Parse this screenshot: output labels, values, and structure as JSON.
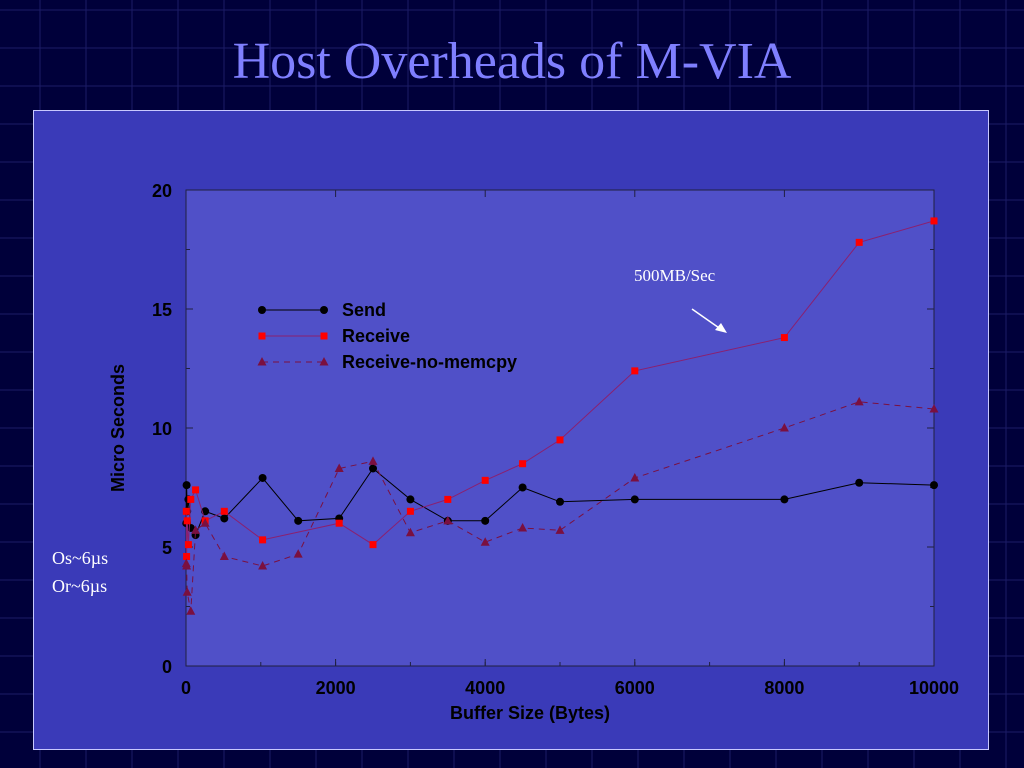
{
  "slide": {
    "title": "Host Overheads of M-VIA",
    "annotation": "500MB/Sec",
    "notes": [
      "Os~6µs",
      "Or~6µs"
    ]
  },
  "colors": {
    "background": "#00003a",
    "panel": "#3a3ab8",
    "title": "#7f7fff",
    "send": "#000000",
    "receive": "#ff0000",
    "receive_line": "#8a2070",
    "receive_no_memcpy": "#7a1040"
  },
  "chart_data": {
    "type": "line",
    "title": "",
    "xlabel": "Buffer Size (Bytes)",
    "ylabel": "Micro Seconds",
    "xlim": [
      0,
      10000
    ],
    "ylim": [
      0,
      20
    ],
    "xticks": [
      0,
      2000,
      4000,
      6000,
      8000,
      10000
    ],
    "yticks": [
      0,
      5,
      10,
      15,
      20
    ],
    "grid": false,
    "legend_position": "upper-left",
    "series": [
      {
        "name": "Send",
        "marker": "circle",
        "line": "solid",
        "points": [
          [
            4,
            6.0
          ],
          [
            8,
            7.6
          ],
          [
            16,
            6.5
          ],
          [
            32,
            7.0
          ],
          [
            64,
            5.8
          ],
          [
            128,
            5.5
          ],
          [
            256,
            6.5
          ],
          [
            512,
            6.2
          ],
          [
            1024,
            7.9
          ],
          [
            1500,
            6.1
          ],
          [
            2048,
            6.2
          ],
          [
            2500,
            8.3
          ],
          [
            3000,
            7.0
          ],
          [
            3500,
            6.1
          ],
          [
            4000,
            6.1
          ],
          [
            4500,
            7.5
          ],
          [
            5000,
            6.9
          ],
          [
            6000,
            7.0
          ],
          [
            8000,
            7.0
          ],
          [
            9000,
            7.7
          ],
          [
            10000,
            7.6
          ]
        ]
      },
      {
        "name": "Receive",
        "marker": "square",
        "line": "solid",
        "points": [
          [
            4,
            6.5
          ],
          [
            8,
            4.6
          ],
          [
            16,
            6.1
          ],
          [
            32,
            5.1
          ],
          [
            64,
            7.0
          ],
          [
            128,
            7.4
          ],
          [
            256,
            6.1
          ],
          [
            512,
            6.5
          ],
          [
            1024,
            5.3
          ],
          [
            2048,
            6.0
          ],
          [
            2500,
            5.1
          ],
          [
            3000,
            6.5
          ],
          [
            3500,
            7.0
          ],
          [
            4000,
            7.8
          ],
          [
            4500,
            8.5
          ],
          [
            5000,
            9.5
          ],
          [
            6000,
            12.4
          ],
          [
            8000,
            13.8
          ],
          [
            9000,
            17.8
          ],
          [
            10000,
            18.7
          ]
        ]
      },
      {
        "name": "Receive-no-memcpy",
        "marker": "triangle",
        "line": "dashed",
        "points": [
          [
            4,
            4.3
          ],
          [
            8,
            4.2
          ],
          [
            16,
            3.1
          ],
          [
            64,
            2.3
          ],
          [
            128,
            5.7
          ],
          [
            256,
            6.0
          ],
          [
            512,
            4.6
          ],
          [
            1024,
            4.2
          ],
          [
            1500,
            4.7
          ],
          [
            2048,
            8.3
          ],
          [
            2500,
            8.6
          ],
          [
            3000,
            5.6
          ],
          [
            3500,
            6.1
          ],
          [
            4000,
            5.2
          ],
          [
            4500,
            5.8
          ],
          [
            5000,
            5.7
          ],
          [
            6000,
            7.9
          ],
          [
            8000,
            10.0
          ],
          [
            9000,
            11.1
          ],
          [
            10000,
            10.8
          ]
        ]
      }
    ]
  }
}
